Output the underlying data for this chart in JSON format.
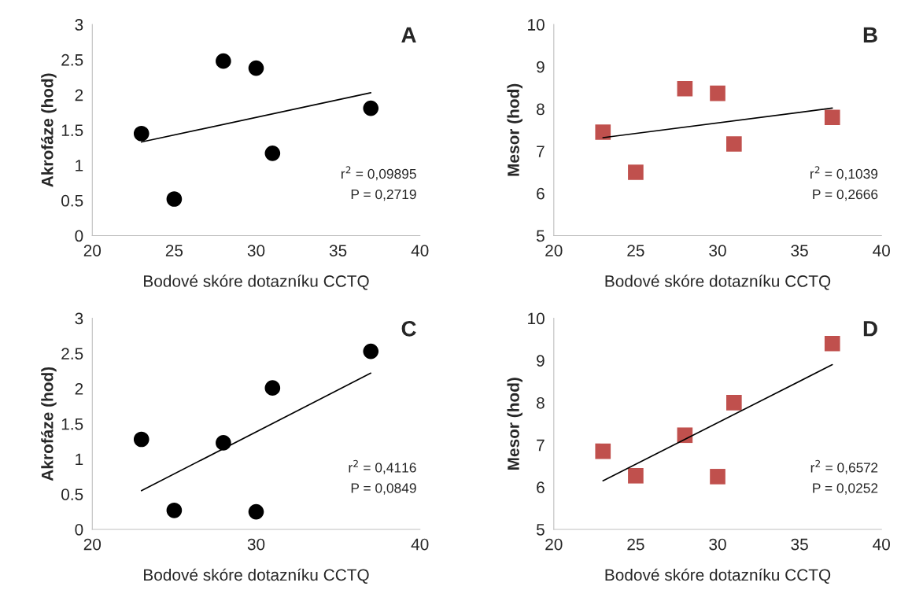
{
  "chart_data": [
    {
      "type": "scatter",
      "title": "A",
      "xlabel": "Bodové skóre dotazníku CCTQ",
      "ylabel": "Akrofáze (hod)",
      "xlim": [
        20,
        40
      ],
      "xticks": [
        20,
        25,
        30,
        35,
        40
      ],
      "ylim": [
        0,
        3
      ],
      "yticks": [
        0,
        0.5,
        1,
        1.5,
        2,
        2.5,
        3
      ],
      "grid": false,
      "legend": false,
      "series": [
        {
          "color": "#000000",
          "marker": "circle",
          "x": [
            23,
            25,
            28,
            30,
            31,
            37
          ],
          "values": [
            1.45,
            0.52,
            2.48,
            2.38,
            1.17,
            1.81
          ]
        },
        {
          "type": "line",
          "color": "#000000",
          "marker": "none",
          "line_style": "solid",
          "x": [
            23,
            37
          ],
          "values": [
            1.33,
            2.03
          ]
        }
      ],
      "annotations": [
        "r$^{2}$ = 0,09895",
        "P = 0,2719"
      ]
    },
    {
      "type": "scatter",
      "title": "B",
      "xlabel": "Bodové skóre dotazníku CCTQ",
      "ylabel": "Mesor (hod)",
      "xlim": [
        20,
        40
      ],
      "xticks": [
        20,
        25,
        30,
        35,
        40
      ],
      "ylim": [
        5,
        10
      ],
      "yticks": [
        5,
        6,
        7,
        8,
        9,
        10
      ],
      "grid": false,
      "legend": false,
      "series": [
        {
          "color": "#c0504d",
          "marker": "square",
          "x": [
            23,
            25,
            28,
            30,
            31,
            37
          ],
          "values": [
            7.45,
            6.5,
            8.48,
            8.37,
            7.17,
            7.8
          ]
        },
        {
          "type": "line",
          "color": "#000000",
          "marker": "none",
          "line_style": "solid",
          "x": [
            23,
            37
          ],
          "values": [
            7.32,
            8.02
          ]
        }
      ],
      "annotations": [
        "r$^{2}$ = 0,1039",
        "P = 0,2666"
      ]
    },
    {
      "type": "scatter",
      "title": "C",
      "xlabel": "Bodové skóre dotazníku CCTQ",
      "ylabel": "Akrofáze (hod)",
      "xlim": [
        20,
        40
      ],
      "xticks": [
        20,
        30,
        40
      ],
      "ylim": [
        0,
        3
      ],
      "yticks": [
        0,
        0.5,
        1,
        1.5,
        2,
        2.5,
        3
      ],
      "grid": false,
      "legend": false,
      "series": [
        {
          "color": "#000000",
          "marker": "circle",
          "x": [
            23,
            25,
            28,
            30,
            31,
            37
          ],
          "values": [
            1.28,
            0.27,
            1.23,
            0.25,
            2.01,
            2.53
          ]
        },
        {
          "type": "line",
          "color": "#000000",
          "marker": "none",
          "line_style": "solid",
          "x": [
            23,
            37
          ],
          "values": [
            0.55,
            2.22
          ]
        }
      ],
      "annotations": [
        "r$^{2}$ = 0,4116",
        "P = 0,0849"
      ]
    },
    {
      "type": "scatter",
      "title": "D",
      "xlabel": "Bodové skóre dotazníku CCTQ",
      "ylabel": "Mesor (hod)",
      "xlim": [
        20,
        40
      ],
      "xticks": [
        20,
        25,
        30,
        35,
        40
      ],
      "ylim": [
        5,
        10
      ],
      "yticks": [
        5,
        6,
        7,
        8,
        9,
        10
      ],
      "grid": false,
      "legend": false,
      "series": [
        {
          "color": "#c0504d",
          "marker": "square",
          "x": [
            23,
            25,
            28,
            30,
            31,
            37
          ],
          "values": [
            6.85,
            6.27,
            7.23,
            6.25,
            8.0,
            9.4
          ]
        },
        {
          "type": "line",
          "color": "#000000",
          "marker": "none",
          "line_style": "solid",
          "x": [
            23,
            37
          ],
          "values": [
            6.15,
            8.9
          ]
        }
      ],
      "annotations": [
        "r$^{2}$ = 0,6572",
        "P = 0,0252"
      ]
    }
  ]
}
